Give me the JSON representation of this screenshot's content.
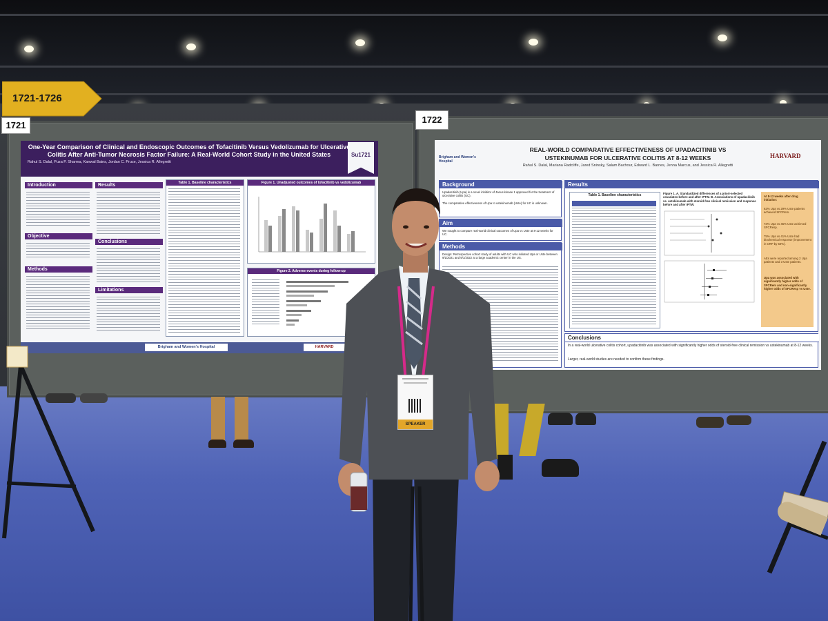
{
  "signs": {
    "direction_sign": "1721-1726",
    "booth_left": "1721",
    "booth_right": "1722"
  },
  "poster_left": {
    "title": "One-Year Comparison of Clinical and Endoscopic Outcomes of Tofacitinib Versus Vedolizumab for Ulcerative Colitis After Anti-Tumor Necrosis Factor Failure: A Real-World Cohort Study in the United States",
    "authors": "Rahul S. Dalal, Puza P. Sharma, Kanwal Bains, Jordan C. Pruce, Jessica R. Allegretti",
    "code": "Su1721",
    "sections": [
      "Introduction",
      "Results",
      "Objective",
      "Conclusions",
      "Methods",
      "Limitations"
    ],
    "table_title": "Table 1. Baseline characteristics",
    "figure1_title": "Figure 1. Unadjusted outcomes of tofacitinib vs vedolizumab",
    "figure2_title": "Figure 2. Adverse events during follow-up",
    "footer_logo": "Brigham and Women's Hospital",
    "footer_logo2": "HARVARD"
  },
  "poster_right": {
    "title_line1": "REAL-WORLD COMPARATIVE EFFECTIVENESS OF UPADACITINIB VS",
    "title_line2": "USTEKINUMAB FOR ULCERATIVE COLITIS AT 8-12 WEEKS",
    "authors": "Rahul S. Dalal, Mariana Radcliffe, Jared Sninsky, Salam Bachour, Edward L. Barnes, Jenna Marcus, and Jessica R. Allegretti",
    "logo_left": "Brigham and Women's Hospital",
    "logo_right": "HARVARD",
    "sections": {
      "background": "Background",
      "background_text1": "Upadacitinib (Upa) is a novel inhibitor of Janus kinase 1 approved for the treatment of ulcerative colitis (UC).",
      "background_text2": "The comparative effectiveness of Upa to ustekinumab (Uste) for UC is unknown.",
      "aim": "Aim",
      "aim_text": "We sought to compare real-world clinical outcomes of Upa vs Uste at 8-12 weeks for UC.",
      "methods": "Methods",
      "methods_text": "Design: Retrospective cohort study of adults with UC who initiated Upa or Uste between 9/1/2021 and 9/1/2022 at a large academic center in the US.",
      "results": "Results",
      "results_table_title": "Table 1. Baseline characteristics",
      "results_figure_title": "Figure 1. A. Standardized differences of a priori-selected covariates before and after IPTW. B. Associations of upadacitinib vs. ustekinumab with steroid-free clinical remission and response before and after IPTW.",
      "key_findings": [
        "At 8-12 weeks after drug initiation:",
        "62% Upa vs 29% Uste patients achieved SFCRem.",
        "73% Upa vs 45% Uste achieved SFCResp.",
        "75% Upa vs 41% Uste had biochemical response (improvement in CRP by 50%).",
        "AEs were reported among 2 Upa patients and 3 Uste patients.",
        "Upa was associated with significantly higher odds of SFCRem and non-significantly higher odds of SFCResp vs Uste."
      ],
      "conclusions": "Conclusions",
      "conclusions_text1": "In a real-world ulcerative colitis cohort, upadacitinib was associated with significantly higher odds of steroid-free clinical remission vs ustekinumab at 8-12 weeks.",
      "conclusions_text2": "Larger, real-world studies are needed to confirm these findings."
    }
  },
  "badge": {
    "ribbon": "SPEAKER"
  },
  "colors": {
    "left_header": "#3c1f5e",
    "left_accent": "#5a2a7c",
    "right_accent": "#4a5aa8",
    "carpet": "#4f63b6",
    "sign_yellow": "#e2b020"
  }
}
